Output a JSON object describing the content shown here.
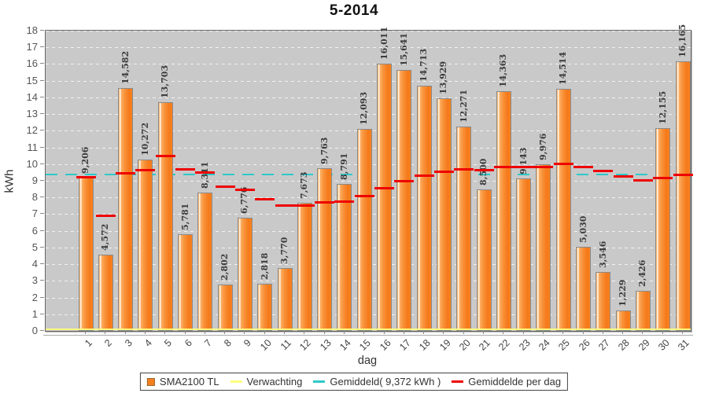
{
  "title": "5-2014",
  "y_axis": {
    "label": "kWh",
    "min": 0,
    "max": 18,
    "step": 1
  },
  "x_axis": {
    "label": "dag"
  },
  "legend": [
    {
      "label": "SMA2100 TL",
      "color": "#f5801e",
      "type": "square"
    },
    {
      "label": "Verwachting",
      "color": "#ffff80",
      "type": "line"
    },
    {
      "label": "Gemiddeld( 9,372 kWh )",
      "color": "#2fc8c8",
      "type": "line"
    },
    {
      "label": "Gemiddelde per dag",
      "color": "#ee0000",
      "type": "line"
    }
  ],
  "chart_data": {
    "type": "bar",
    "title": "5-2014",
    "xlabel": "dag",
    "ylabel": "kWh",
    "ylim": [
      0,
      18
    ],
    "grid": "horizontal-white-dashed",
    "legend_position": "bottom-center",
    "plot_background": "#c9c9c9",
    "categories": [
      "1",
      "2",
      "3",
      "4",
      "5",
      "6",
      "7",
      "8",
      "9",
      "10",
      "11",
      "12",
      "13",
      "14",
      "15",
      "16",
      "17",
      "18",
      "19",
      "20",
      "21",
      "22",
      "23",
      "24",
      "25",
      "26",
      "27",
      "28",
      "29",
      "30",
      "31"
    ],
    "series": [
      {
        "name": "SMA2100 TL",
        "color": "#f5801e",
        "values": [
          9.206,
          4.572,
          14.582,
          10.272,
          13.703,
          5.781,
          8.311,
          2.802,
          6.776,
          2.818,
          3.77,
          7.673,
          9.763,
          8.791,
          12.093,
          16.011,
          15.641,
          14.713,
          13.929,
          12.271,
          8.5,
          14.363,
          9.143,
          9.976,
          14.514,
          5.03,
          3.546,
          1.229,
          2.426,
          12.155,
          16.165
        ],
        "labels": [
          "9,206",
          "4,572",
          "14,582",
          "10,272",
          "13,703",
          "5,781",
          "8,311",
          "2,802",
          "6,776",
          "2,818",
          "3,770",
          "7,673",
          "9,763",
          "8,791",
          "12,093",
          "16,011",
          "15,641",
          "14,713",
          "13,929",
          "12,271",
          "8,500",
          "14,363",
          "9,143",
          "9,976",
          "14,514",
          "5,030",
          "3,546",
          "1,229",
          "2,426",
          "12,155",
          "16,165"
        ]
      }
    ],
    "lines": [
      {
        "name": "Verwachting",
        "color": "#ffff80",
        "style": "solid",
        "y": 0.05
      },
      {
        "name": "Gemiddeld",
        "label": "Gemiddeld( 9,372 kWh )",
        "color": "#2fc8c8",
        "style": "dashed",
        "y": 9.372
      },
      {
        "name": "Gemiddelde per dag",
        "color": "#ee0000",
        "style": "per-category-segments",
        "y_values": [
          9.206,
          6.889,
          9.453,
          9.658,
          10.467,
          9.686,
          9.49,
          8.654,
          8.445,
          7.882,
          7.508,
          7.522,
          7.695,
          7.773,
          8.061,
          8.558,
          8.974,
          9.293,
          9.537,
          9.674,
          9.618,
          9.834,
          9.804,
          9.811,
          9.999,
          9.808,
          9.576,
          9.278,
          9.042,
          9.145,
          9.372
        ]
      }
    ]
  }
}
